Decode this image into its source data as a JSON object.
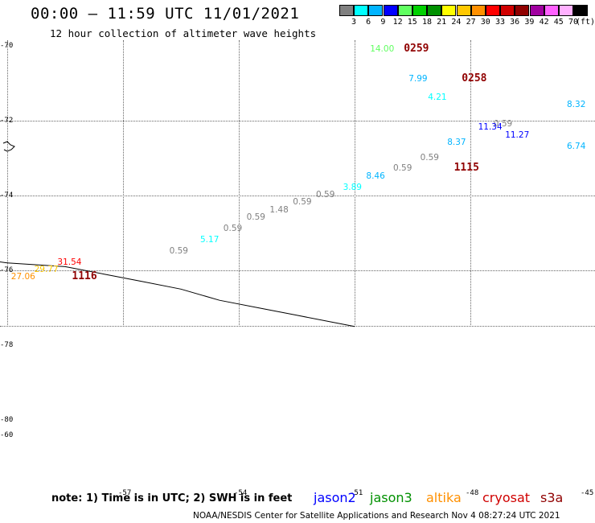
{
  "header": {
    "title": "00:00 — 11:59 UTC 11/01/2021",
    "subtitle": "12 hour collection of altimeter wave heights"
  },
  "color_scale": {
    "unit": "(ft)",
    "cells": [
      {
        "color": "#808080",
        "label": "3"
      },
      {
        "color": "#00ffff",
        "label": "6"
      },
      {
        "color": "#00b4ff",
        "label": "9"
      },
      {
        "color": "#0000ff",
        "label": "12"
      },
      {
        "color": "#60ff60",
        "label": "15"
      },
      {
        "color": "#00d000",
        "label": "18"
      },
      {
        "color": "#009000",
        "label": "21"
      },
      {
        "color": "#ffff00",
        "label": "24"
      },
      {
        "color": "#ffc800",
        "label": "27"
      },
      {
        "color": "#ff9000",
        "label": "30"
      },
      {
        "color": "#ff0000",
        "label": "33"
      },
      {
        "color": "#d00000",
        "label": "36"
      },
      {
        "color": "#900000",
        "label": "39"
      },
      {
        "color": "#a000a0",
        "label": "42"
      },
      {
        "color": "#ff60ff",
        "label": "45"
      },
      {
        "color": "#ffb0ff",
        "label": "70"
      },
      {
        "color": "#000000",
        "label": ""
      }
    ]
  },
  "axes": {
    "lat_labels": [
      {
        "text": "-70",
        "lat": -70
      },
      {
        "text": "-72",
        "lat": -72
      },
      {
        "text": "-74",
        "lat": -74
      },
      {
        "text": "-76",
        "lat": -76
      },
      {
        "text": "-78",
        "lat": -78
      },
      {
        "text": "-80",
        "lat": -80
      },
      {
        "text": "-60",
        "lat": -80.4
      }
    ],
    "lon_labels": [
      {
        "text": "-57",
        "lon": -57
      },
      {
        "text": "-54",
        "lon": -54
      },
      {
        "text": "-51",
        "lon": -51
      },
      {
        "text": "-48",
        "lon": -48
      },
      {
        "text": "-45",
        "lon": -45
      }
    ]
  },
  "observations": [
    {
      "text": "14.00",
      "color": "#60ff60",
      "lon": -50.6,
      "lat": -70.1
    },
    {
      "text": "7.99",
      "color": "#00b4ff",
      "lon": -49.6,
      "lat": -70.9
    },
    {
      "text": "4.21",
      "color": "#00ffff",
      "lon": -49.1,
      "lat": -71.4
    },
    {
      "text": "8.32",
      "color": "#00b4ff",
      "lon": -45.5,
      "lat": -71.6
    },
    {
      "text": "0.59",
      "color": "#808080",
      "lon": -47.4,
      "lat": -72.1
    },
    {
      "text": "11.34",
      "color": "#0000ff",
      "lon": -47.8,
      "lat": -72.2
    },
    {
      "text": "11.27",
      "color": "#0000ff",
      "lon": -47.1,
      "lat": -72.4
    },
    {
      "text": "8.37",
      "color": "#00b4ff",
      "lon": -48.6,
      "lat": -72.6
    },
    {
      "text": "6.74",
      "color": "#00b4ff",
      "lon": -45.5,
      "lat": -72.7
    },
    {
      "text": "0.59",
      "color": "#808080",
      "lon": -49.3,
      "lat": -73.0
    },
    {
      "text": "0.59",
      "color": "#808080",
      "lon": -50.0,
      "lat": -73.3
    },
    {
      "text": "8.46",
      "color": "#00b4ff",
      "lon": -50.7,
      "lat": -73.5
    },
    {
      "text": "3.89",
      "color": "#00ffff",
      "lon": -51.3,
      "lat": -73.8
    },
    {
      "text": "0.59",
      "color": "#808080",
      "lon": -52.0,
      "lat": -74.0
    },
    {
      "text": "0.59",
      "color": "#808080",
      "lon": -52.6,
      "lat": -74.2
    },
    {
      "text": "1.48",
      "color": "#808080",
      "lon": -53.2,
      "lat": -74.4
    },
    {
      "text": "0.59",
      "color": "#808080",
      "lon": -53.8,
      "lat": -74.6
    },
    {
      "text": "0.59",
      "color": "#808080",
      "lon": -54.4,
      "lat": -74.9
    },
    {
      "text": "5.17",
      "color": "#00ffff",
      "lon": -55.0,
      "lat": -75.2
    },
    {
      "text": "0.59",
      "color": "#808080",
      "lon": -55.8,
      "lat": -75.5
    },
    {
      "text": "31.54",
      "color": "#ff0000",
      "lon": -58.7,
      "lat": -75.8
    },
    {
      "text": "29.77",
      "color": "#ffc800",
      "lon": -59.3,
      "lat": -76.0
    },
    {
      "text": "27.06",
      "color": "#ff9000",
      "lon": -59.9,
      "lat": -76.2
    }
  ],
  "times": [
    {
      "text": "0259",
      "color": "#900000",
      "lon": -50.6,
      "lat": -70.1
    },
    {
      "text": "0258",
      "color": "#900000",
      "lon": -49.1,
      "lat": -70.9
    },
    {
      "text": "1115",
      "color": "#900000",
      "lon": -49.3,
      "lat": -73.3
    },
    {
      "text": "1116",
      "color": "#900000",
      "lon": -59.2,
      "lat": -76.2
    }
  ],
  "coastline": [
    [
      -63,
      -75.3
    ],
    [
      -61.5,
      -75.6
    ],
    [
      -60,
      -75.8
    ],
    [
      -58.5,
      -75.9
    ],
    [
      -57.5,
      -76.1
    ],
    [
      -56.5,
      -76.3
    ],
    [
      -55.5,
      -76.5
    ],
    [
      -54.5,
      -76.8
    ],
    [
      -53.5,
      -77.0
    ],
    [
      -52.5,
      -77.2
    ],
    [
      -51.5,
      -77.4
    ],
    [
      -51.0,
      -77.5
    ]
  ],
  "footer": {
    "note": "note: 1) Time is in UTC; 2) SWH is in feet",
    "satellites": [
      {
        "name": "jason2",
        "color": "#0000ff"
      },
      {
        "name": "jason3",
        "color": "#009000"
      },
      {
        "name": "altika",
        "color": "#ff9000"
      },
      {
        "name": "cryosat",
        "color": "#d00000"
      },
      {
        "name": "s3a",
        "color": "#900000"
      }
    ],
    "credit": "NOAA/NESDIS Center for Satellite Applications and Research    Nov  4 08:27:24 UTC 2021"
  }
}
